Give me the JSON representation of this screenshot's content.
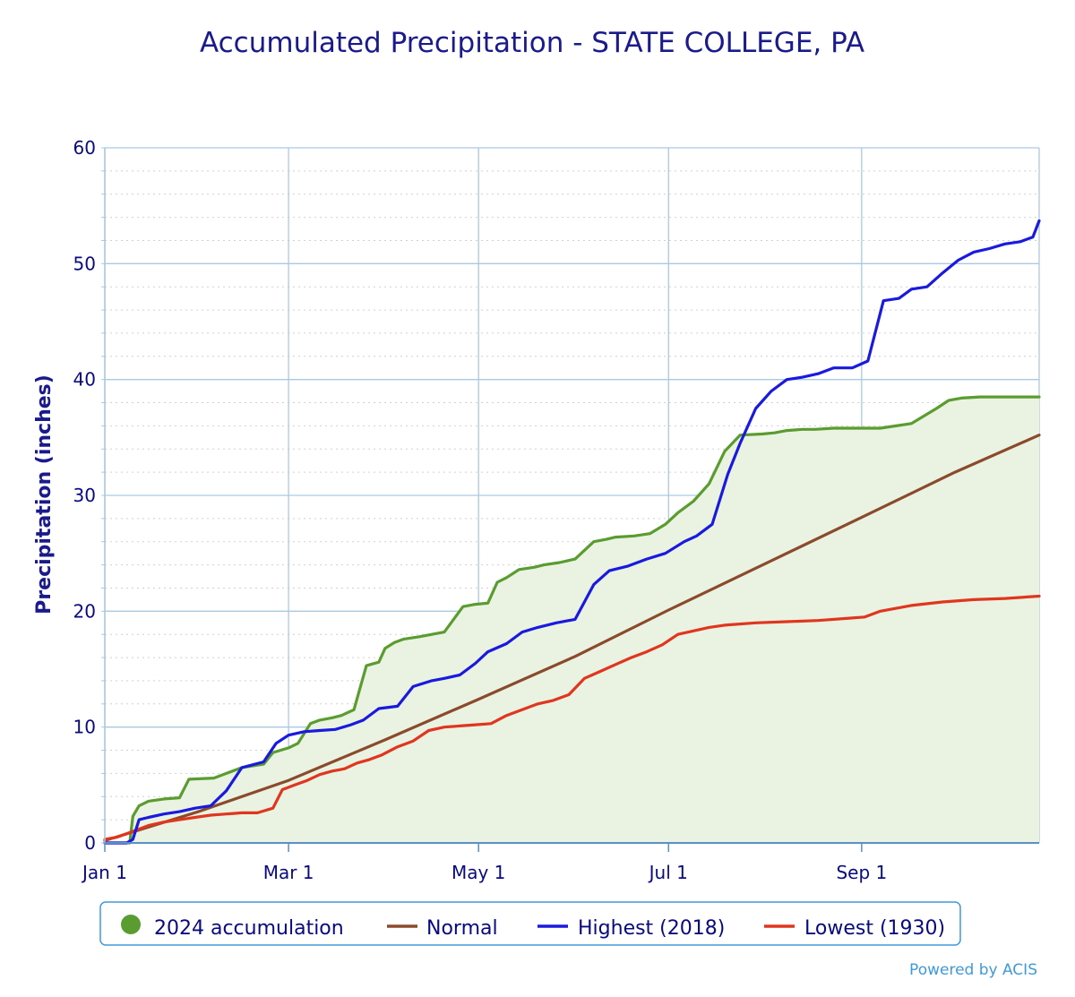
{
  "chart_data": {
    "type": "line",
    "title": "Accumulated Precipitation - STATE COLLEGE, PA",
    "ylabel": "Precipitation (inches)",
    "xlabel": "",
    "ylim": [
      0,
      60
    ],
    "yticks": [
      0,
      10,
      20,
      30,
      40,
      50,
      60
    ],
    "x_axis": {
      "unit": "day-of-year",
      "range": [
        1,
        301
      ]
    },
    "xticks": [
      {
        "label": "Jan 1",
        "day": 1
      },
      {
        "label": "Mar 1",
        "day": 60
      },
      {
        "label": "May 1",
        "day": 121
      },
      {
        "label": "Jul 1",
        "day": 182
      },
      {
        "label": "Sep 1",
        "day": 244
      }
    ],
    "grid": true,
    "legend_position": "bottom",
    "series": [
      {
        "name": "2024 accumulation",
        "color": "#5a9c2f",
        "fill": "#eaf3e2",
        "style": "area",
        "x": [
          1,
          9,
          10,
          12,
          15,
          20,
          25,
          28,
          36,
          40,
          45,
          52,
          55,
          60,
          63,
          67,
          70,
          74,
          77,
          81,
          85,
          89,
          91,
          94,
          97,
          102,
          106,
          110,
          116,
          120,
          124,
          127,
          130,
          134,
          139,
          142,
          147,
          152,
          158,
          162,
          165,
          171,
          176,
          181,
          185,
          190,
          195,
          200,
          205,
          212,
          216,
          220,
          225,
          229,
          235,
          241,
          244,
          250,
          260,
          268,
          272,
          276,
          282,
          290,
          301
        ],
        "y": [
          0.0,
          0.0,
          2.3,
          3.2,
          3.6,
          3.8,
          3.9,
          5.5,
          5.6,
          6.0,
          6.5,
          6.8,
          7.8,
          8.2,
          8.6,
          10.3,
          10.6,
          10.8,
          11.0,
          11.5,
          15.3,
          15.6,
          16.8,
          17.3,
          17.6,
          17.8,
          18.0,
          18.2,
          20.4,
          20.6,
          20.7,
          22.5,
          22.9,
          23.6,
          23.8,
          24.0,
          24.2,
          24.5,
          26.0,
          26.2,
          26.4,
          26.5,
          26.7,
          27.5,
          28.5,
          29.5,
          31.0,
          33.8,
          35.2,
          35.3,
          35.4,
          35.6,
          35.7,
          35.7,
          35.8,
          35.8,
          35.8,
          35.8,
          36.2,
          37.5,
          38.2,
          38.4,
          38.5,
          38.5,
          38.5
        ]
      },
      {
        "name": "Normal",
        "color": "#8b4a2b",
        "style": "line",
        "x": [
          1,
          31,
          60,
          91,
          121,
          152,
          182,
          213,
          244,
          274,
          301
        ],
        "y": [
          0.2,
          2.7,
          5.4,
          8.9,
          12.4,
          16.1,
          20.1,
          24.1,
          28.1,
          32.0,
          35.2
        ]
      },
      {
        "name": "Highest (2018)",
        "color": "#1a1adf",
        "style": "line",
        "x": [
          1,
          8,
          10,
          12,
          15,
          20,
          25,
          30,
          35,
          40,
          45,
          52,
          56,
          60,
          65,
          70,
          75,
          80,
          84,
          89,
          95,
          100,
          106,
          110,
          115,
          120,
          124,
          130,
          135,
          140,
          146,
          152,
          158,
          163,
          169,
          175,
          181,
          187,
          191,
          196,
          201,
          205,
          210,
          215,
          220,
          225,
          230,
          235,
          241,
          246,
          251,
          256,
          260,
          265,
          270,
          275,
          280,
          285,
          290,
          295,
          299,
          301
        ],
        "y": [
          0,
          0,
          0.3,
          2.0,
          2.2,
          2.5,
          2.7,
          3.0,
          3.2,
          4.5,
          6.5,
          7.0,
          8.6,
          9.3,
          9.6,
          9.7,
          9.8,
          10.2,
          10.6,
          11.6,
          11.8,
          13.5,
          14.0,
          14.2,
          14.5,
          15.5,
          16.5,
          17.2,
          18.2,
          18.6,
          19.0,
          19.3,
          22.3,
          23.5,
          23.9,
          24.5,
          25.0,
          26.0,
          26.5,
          27.5,
          31.8,
          34.5,
          37.5,
          39.0,
          40.0,
          40.2,
          40.5,
          41.0,
          41.0,
          41.6,
          46.8,
          47.0,
          47.8,
          48.0,
          49.2,
          50.3,
          51.0,
          51.3,
          51.7,
          51.9,
          52.3,
          53.7
        ]
      },
      {
        "name": "Lowest (1930)",
        "color": "#e0351f",
        "style": "line",
        "x": [
          1,
          5,
          10,
          15,
          20,
          25,
          30,
          35,
          40,
          45,
          50,
          55,
          58,
          62,
          66,
          70,
          74,
          78,
          82,
          86,
          90,
          95,
          100,
          105,
          110,
          115,
          120,
          125,
          130,
          135,
          140,
          145,
          150,
          155,
          160,
          165,
          170,
          175,
          180,
          185,
          190,
          195,
          200,
          210,
          220,
          230,
          240,
          245,
          250,
          260,
          270,
          280,
          290,
          301
        ],
        "y": [
          0.3,
          0.5,
          1.0,
          1.5,
          1.8,
          2.0,
          2.2,
          2.4,
          2.5,
          2.6,
          2.6,
          3.0,
          4.6,
          5.0,
          5.4,
          5.9,
          6.2,
          6.4,
          6.9,
          7.2,
          7.6,
          8.3,
          8.8,
          9.7,
          10.0,
          10.1,
          10.2,
          10.3,
          11.0,
          11.5,
          12.0,
          12.3,
          12.8,
          14.2,
          14.8,
          15.4,
          16.0,
          16.5,
          17.1,
          18.0,
          18.3,
          18.6,
          18.8,
          19.0,
          19.1,
          19.2,
          19.4,
          19.5,
          20.0,
          20.5,
          20.8,
          21.0,
          21.1,
          21.3
        ]
      }
    ]
  },
  "credit": "Powered by ACIS"
}
